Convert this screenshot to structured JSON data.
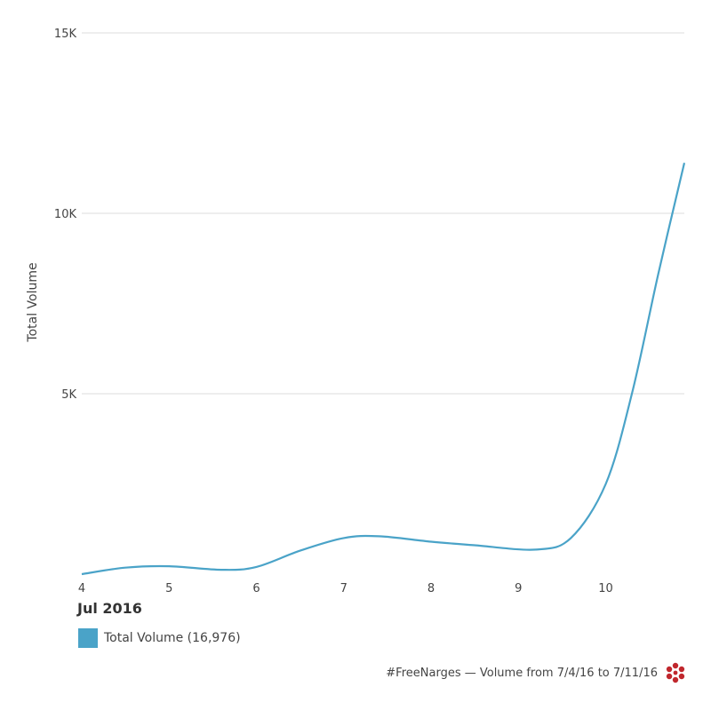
{
  "chart_data": {
    "type": "line",
    "ylabel": "Total Volume",
    "y_tick_labels": [
      "5K",
      "10K",
      "15K"
    ],
    "y_ticks": [
      5000,
      10000,
      15000
    ],
    "ylim": [
      0,
      15000
    ],
    "x_tick_labels": [
      "4",
      "5",
      "6",
      "7",
      "8",
      "9",
      "10"
    ],
    "x_ticks": [
      4,
      5,
      6,
      7,
      8,
      9,
      10
    ],
    "xlim": [
      4,
      10.9
    ],
    "date_label": "Jul 2016",
    "grid": true,
    "series": [
      {
        "name": "Total Volume (16,976)",
        "color": "#4aa3c8",
        "x": [
          4,
          4.5,
          5,
          5.6,
          6,
          6.5,
          7,
          7.4,
          8,
          8.5,
          9.2,
          9.6,
          10,
          10.3,
          10.6,
          10.9
        ],
        "y": [
          0,
          180,
          220,
          120,
          200,
          650,
          1000,
          1050,
          900,
          800,
          680,
          1000,
          2500,
          5000,
          8300,
          11400
        ]
      }
    ]
  },
  "legend": {
    "label": "Total Volume (16,976)",
    "color": "#4aa3c8"
  },
  "footer": {
    "text": "#FreeNarges — Volume from 7/4/16 to 7/11/16",
    "logo_icon": "red-dot-cluster-icon",
    "logo_color": "#c0272d"
  }
}
